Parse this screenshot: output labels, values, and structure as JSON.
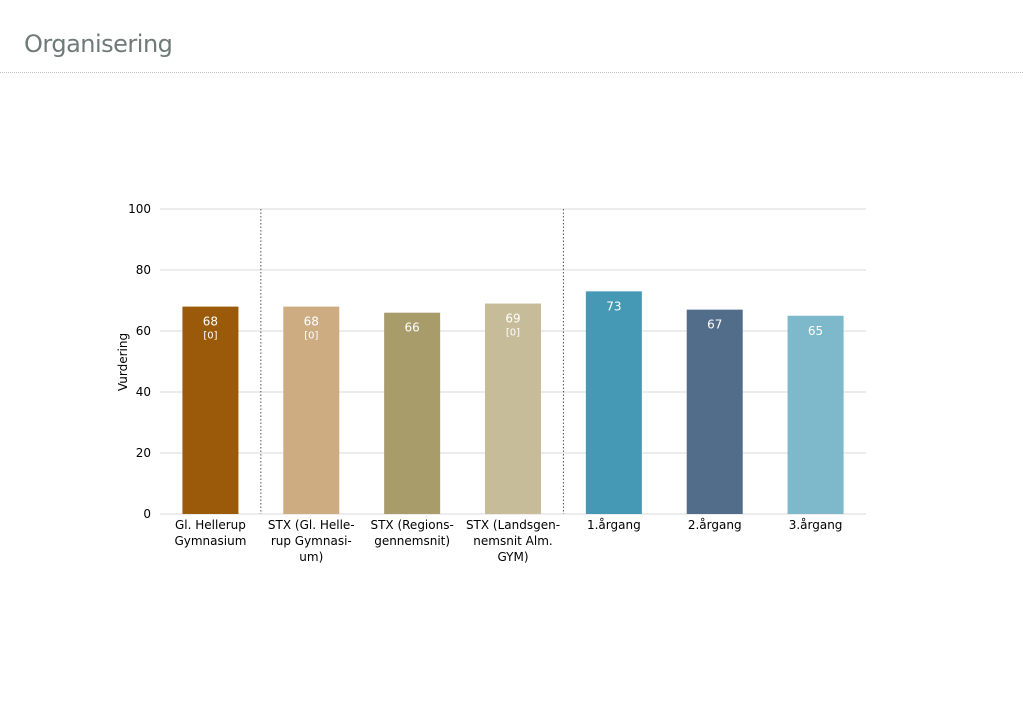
{
  "page": {
    "title": "Organisering"
  },
  "chart_data": {
    "type": "bar",
    "ylabel": "Vurdering",
    "ylim": [
      0,
      100
    ],
    "yticks": [
      0,
      20,
      40,
      60,
      80,
      100
    ],
    "grid": true,
    "categories": [
      [
        "Gl. Hellerup",
        "Gymnasium"
      ],
      [
        "STX (Gl. Helle-",
        "rup Gymnasi-",
        "um)"
      ],
      [
        "STX (Regions-",
        "gennemsnit)"
      ],
      [
        "STX (Landsgen-",
        "nemsnit Alm.",
        "GYM)"
      ],
      [
        "1.årgang"
      ],
      [
        "2.årgang"
      ],
      [
        "3.årgang"
      ]
    ],
    "values": [
      68,
      68,
      66,
      69,
      73,
      67,
      65
    ],
    "value_labels": [
      "68",
      "68",
      "66",
      "69",
      "73",
      "67",
      "65"
    ],
    "sub_labels": [
      "[0]",
      "[0]",
      "",
      "[0]",
      "",
      "",
      ""
    ],
    "colors": [
      "#9b5a0a",
      "#ceac82",
      "#a89c6a",
      "#c6bc99",
      "#4699b5",
      "#526d8a",
      "#7db8cb"
    ],
    "group_separators_after": [
      0,
      3
    ]
  }
}
